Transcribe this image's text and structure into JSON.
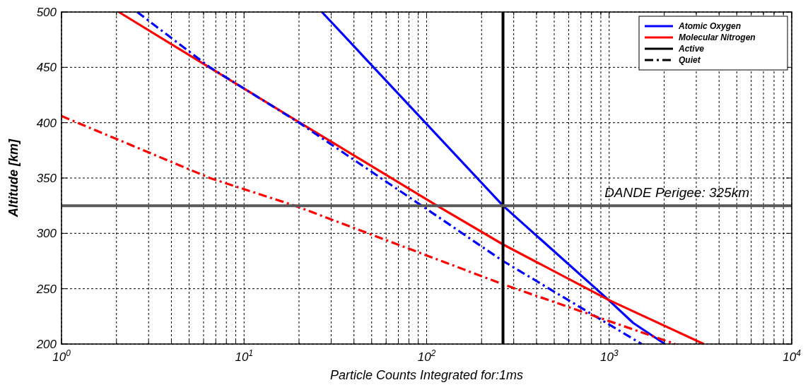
{
  "chart_data": {
    "type": "line",
    "xlabel": "Particle Counts Integrated for:1ms",
    "ylabel": "Altitude [km]",
    "log": "x",
    "xlim": [
      1,
      10000
    ],
    "ylim": [
      200,
      500
    ],
    "xticks": [
      {
        "value": 1,
        "label": "10$^{0}$"
      },
      {
        "value": 2,
        "label": null
      },
      {
        "value": 3,
        "label": null
      },
      {
        "value": 4,
        "label": null
      },
      {
        "value": 5,
        "label": null
      },
      {
        "value": 6,
        "label": null
      },
      {
        "value": 7,
        "label": null
      },
      {
        "value": 8,
        "label": null
      },
      {
        "value": 9,
        "label": null
      },
      {
        "value": 10,
        "label": "10$^{1}$"
      },
      {
        "value": 20,
        "label": null
      },
      {
        "value": 30,
        "label": null
      },
      {
        "value": 40,
        "label": null
      },
      {
        "value": 50,
        "label": null
      },
      {
        "value": 60,
        "label": null
      },
      {
        "value": 70,
        "label": null
      },
      {
        "value": 80,
        "label": null
      },
      {
        "value": 90,
        "label": null
      },
      {
        "value": 100,
        "label": "10$^{2}$"
      },
      {
        "value": 200,
        "label": null
      },
      {
        "value": 300,
        "label": null
      },
      {
        "value": 400,
        "label": null
      },
      {
        "value": 500,
        "label": null
      },
      {
        "value": 600,
        "label": null
      },
      {
        "value": 700,
        "label": null
      },
      {
        "value": 800,
        "label": null
      },
      {
        "value": 900,
        "label": null
      },
      {
        "value": 1000,
        "label": "10$^{3}$"
      },
      {
        "value": 2000,
        "label": null
      },
      {
        "value": 3000,
        "label": null
      },
      {
        "value": 4000,
        "label": null
      },
      {
        "value": 5000,
        "label": null
      },
      {
        "value": 6000,
        "label": null
      },
      {
        "value": 7000,
        "label": null
      },
      {
        "value": 8000,
        "label": null
      },
      {
        "value": 9000,
        "label": null
      },
      {
        "value": 10000,
        "label": "10$^{4}$"
      }
    ],
    "yticks": [
      200,
      250,
      300,
      350,
      400,
      450,
      500
    ],
    "grid": true,
    "legend": "top right",
    "series": [
      {
        "name": "Atomic Oxygen",
        "color": "#0000ff",
        "line_style": "solid",
        "x": [
          26.7,
          262,
          990,
          1355,
          2020
        ],
        "values": [
          500,
          325,
          240,
          219,
          200
        ]
      },
      {
        "name": "Molecular Nitrogen",
        "color": "#ff0000",
        "line_style": "solid",
        "x": [
          2.06,
          20.2,
          114,
          262,
          990,
          3300
        ],
        "values": [
          500,
          400,
          325,
          290,
          240,
          200
        ]
      },
      {
        "name": "Active",
        "color": "#000000",
        "line_style": "solid"
      },
      {
        "name": "Quiet",
        "color": "#000000",
        "line_style": "dashdot"
      },
      {
        "color": "#0000ff",
        "line_style": "dashdot",
        "x": [
          2.6,
          6.5,
          20,
          94,
          262,
          1507
        ],
        "values": [
          500,
          450,
          400,
          325,
          275,
          200
        ]
      },
      {
        "color": "#ff0000",
        "line_style": "dashdot",
        "x": [
          1,
          6.5,
          19,
          262,
          2300
        ],
        "values": [
          406,
          350,
          325,
          254,
          200
        ]
      }
    ],
    "ref_lines": [
      {
        "axis": "x",
        "value": 262,
        "color": "#000000"
      },
      {
        "axis": "y",
        "value": 325,
        "color": "#595959",
        "label": "DANDE Perigee: 325km"
      }
    ]
  }
}
